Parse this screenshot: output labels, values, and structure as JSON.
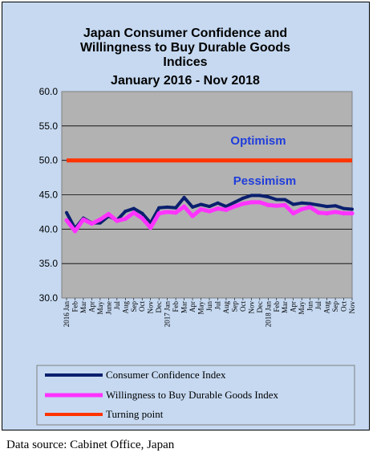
{
  "chart_data": {
    "type": "line",
    "title_lines": [
      "Japan Consumer Confidence and",
      "Willingness to Buy Durable Goods",
      "Indices",
      "January 2016 - Nov 2018"
    ],
    "ylim": [
      30.0,
      60.0
    ],
    "yticks": [
      "30.0",
      "35.0",
      "40.0",
      "45.0",
      "50.0",
      "55.0",
      "60.0"
    ],
    "x_labels": [
      "2016 Jan",
      "Feb",
      "Mar",
      "Apr",
      "May",
      "June",
      "Jul",
      "Aug",
      "Sep",
      "Oct",
      "Nov",
      "Dec",
      "2017 Jan",
      "Feb",
      "Mar",
      "Apr",
      "May",
      "Jun",
      "Jul",
      "Aug",
      "Sep",
      "Oct",
      "Nov",
      "Dec",
      "2018 Jan",
      "Feb",
      "Mar",
      "Apr",
      "May",
      "Jun",
      "Jul",
      "Aug",
      "Sep",
      "Oct",
      "Nov"
    ],
    "grid": true,
    "annotations": {
      "above": "Optimism",
      "below": "Pessimism"
    },
    "series": [
      {
        "name": "Consumer Confidence Index",
        "color": "#0a1f6e",
        "values": [
          42.4,
          40.1,
          41.6,
          40.9,
          40.9,
          41.9,
          41.3,
          42.6,
          43.0,
          42.3,
          40.9,
          43.1,
          43.2,
          43.1,
          44.6,
          43.2,
          43.6,
          43.3,
          43.8,
          43.3,
          43.9,
          44.5,
          44.9,
          44.9,
          44.7,
          44.3,
          44.3,
          43.6,
          43.8,
          43.7,
          43.5,
          43.3,
          43.4,
          43.0,
          42.9
        ]
      },
      {
        "name": "Willingness to Buy Durable Goods Index",
        "color": "#ff33ff",
        "values": [
          41.3,
          39.7,
          41.4,
          40.8,
          41.4,
          42.2,
          41.2,
          41.5,
          42.4,
          41.6,
          40.2,
          42.3,
          42.5,
          42.4,
          43.3,
          41.9,
          42.9,
          42.6,
          43.0,
          42.8,
          43.3,
          43.7,
          43.9,
          43.9,
          43.5,
          43.4,
          43.5,
          42.3,
          42.9,
          43.2,
          42.4,
          42.3,
          42.5,
          42.3,
          42.3
        ]
      },
      {
        "name": "Turning point",
        "color": "#ff3300",
        "values": [
          50.0,
          50.0,
          50.0,
          50.0,
          50.0,
          50.0,
          50.0,
          50.0,
          50.0,
          50.0,
          50.0,
          50.0,
          50.0,
          50.0,
          50.0,
          50.0,
          50.0,
          50.0,
          50.0,
          50.0,
          50.0,
          50.0,
          50.0,
          50.0,
          50.0,
          50.0,
          50.0,
          50.0,
          50.0,
          50.0,
          50.0,
          50.0,
          50.0,
          50.0,
          50.0
        ]
      }
    ],
    "source": "Data source: Cabinet Office, Japan"
  }
}
